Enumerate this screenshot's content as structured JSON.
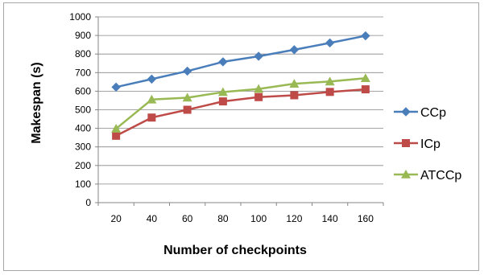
{
  "chart_data": {
    "type": "line",
    "title": "",
    "xlabel": "Number of checkpoints",
    "ylabel": "Makespan (s)",
    "categories": [
      "20",
      "40",
      "60",
      "80",
      "100",
      "120",
      "140",
      "160"
    ],
    "ylim": [
      0,
      1000
    ],
    "yticks": [
      "0",
      "100",
      "200",
      "300",
      "400",
      "500",
      "600",
      "700",
      "800",
      "900",
      "1000"
    ],
    "grid": "horizontal",
    "legend_position": "right",
    "series": [
      {
        "name": "CCp",
        "color": "#4a7ebb",
        "marker": "diamond",
        "values": [
          622,
          665,
          708,
          758,
          788,
          823,
          860,
          898
        ]
      },
      {
        "name": "ICp",
        "color": "#be4b48",
        "marker": "square",
        "values": [
          360,
          458,
          500,
          545,
          568,
          578,
          596,
          610
        ]
      },
      {
        "name": "ATCCp",
        "color": "#98b954",
        "marker": "triangle",
        "values": [
          398,
          555,
          565,
          595,
          612,
          640,
          652,
          670
        ]
      }
    ]
  }
}
